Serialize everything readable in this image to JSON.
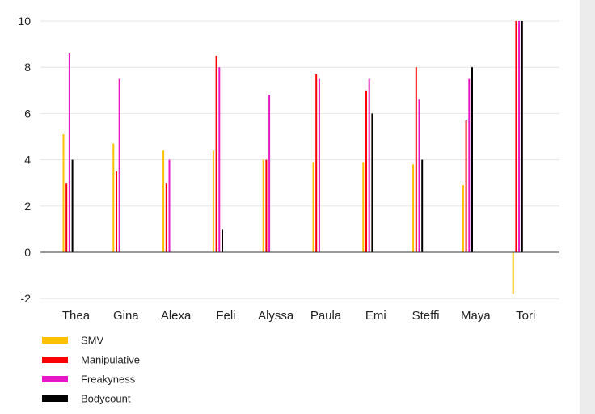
{
  "chart_data": {
    "type": "bar",
    "title": "",
    "xlabel": "",
    "ylabel": "",
    "categories": [
      "Thea",
      "Gina",
      "Alexa",
      "Feli",
      "Alyssa",
      "Paula",
      "Emi",
      "Steffi",
      "Maya",
      "Tori"
    ],
    "series": [
      {
        "name": "SMV",
        "color": "#ffc000",
        "values": [
          5.1,
          4.7,
          4.4,
          4.4,
          4.0,
          3.9,
          3.9,
          3.8,
          2.9,
          -1.8
        ]
      },
      {
        "name": "Manipulative",
        "color": "#ff0000",
        "values": [
          3.0,
          3.5,
          3.0,
          8.5,
          4.0,
          7.7,
          7.0,
          8.0,
          5.7,
          10.0
        ]
      },
      {
        "name": "Freakyness",
        "color": "#e817c8",
        "values": [
          8.6,
          7.5,
          4.0,
          8.0,
          6.8,
          7.5,
          7.5,
          6.6,
          7.5,
          10.0
        ]
      },
      {
        "name": "Bodycount",
        "color": "#000000",
        "values": [
          4.0,
          null,
          null,
          1.0,
          null,
          null,
          6.0,
          4.0,
          8.0,
          10.0
        ]
      }
    ],
    "y_ticks": [
      -2,
      0,
      2,
      4,
      6,
      8,
      10
    ],
    "ylim": [
      -2,
      10
    ],
    "grid": true,
    "legend_position": "bottom-left"
  }
}
